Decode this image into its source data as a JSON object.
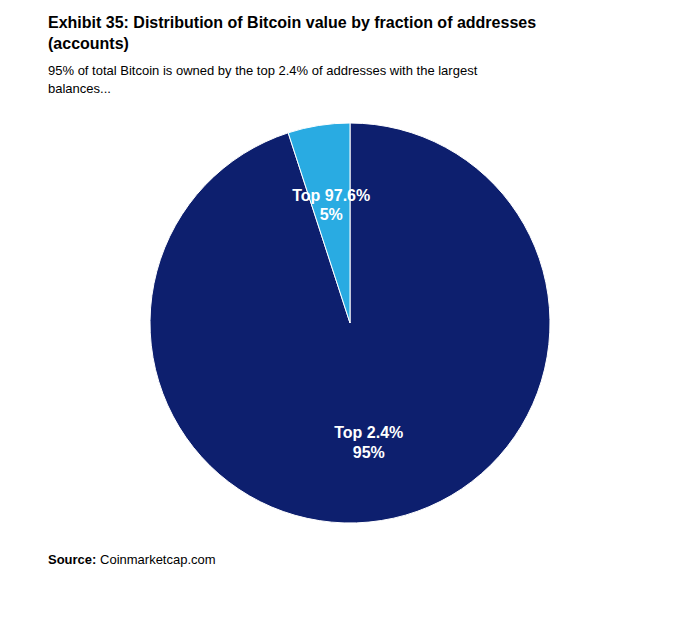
{
  "chart_data": {
    "type": "pie",
    "title": "Exhibit 35: Distribution of Bitcoin value by fraction of addresses\n(accounts)",
    "subtitle": "95% of total Bitcoin is owned by the top 2.4% of addresses with the largest\nbalances...",
    "categories": [
      "Top 2.4%",
      "Top 97.6%"
    ],
    "values": [
      95,
      5
    ],
    "value_labels": [
      "95%",
      "5%"
    ],
    "colors": [
      "#0d1f6e",
      "#29abe2"
    ],
    "data_labels": true,
    "annotations": [
      "Source: Coinmarketcap.com"
    ]
  }
}
